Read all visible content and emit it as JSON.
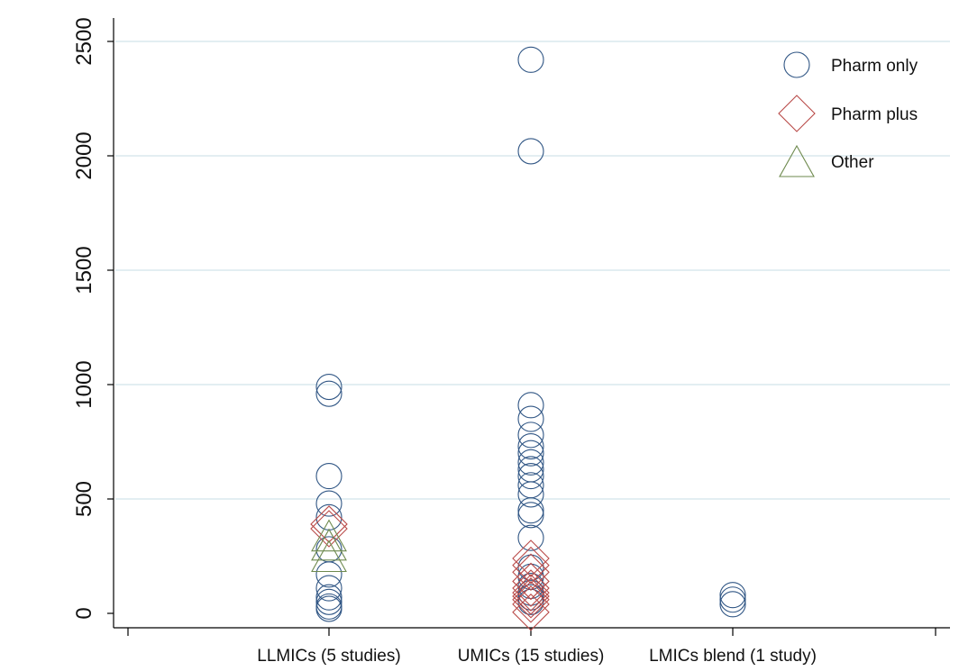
{
  "chart_data": {
    "type": "scatter",
    "title": "",
    "xlabel": "",
    "ylabel": "",
    "categories": [
      "LLMICs (5 studies)",
      "UMICs (15 studies)",
      "LMICs blend (1 study)"
    ],
    "y_ticks": [
      "0",
      "500",
      "1000",
      "1500",
      "2000",
      "2500"
    ],
    "y_tick_values": [
      0,
      500,
      1000,
      1500,
      2000,
      2500
    ],
    "ylim": [
      -30,
      2600
    ],
    "grid": true,
    "legend_position": "top-right",
    "series": [
      {
        "name": "Pharm only",
        "marker": "circle",
        "color": "#2f5584",
        "points": [
          {
            "category": 0,
            "value": 990
          },
          {
            "category": 0,
            "value": 960
          },
          {
            "category": 0,
            "value": 600
          },
          {
            "category": 0,
            "value": 480
          },
          {
            "category": 0,
            "value": 420
          },
          {
            "category": 0,
            "value": 280
          },
          {
            "category": 0,
            "value": 170
          },
          {
            "category": 0,
            "value": 110
          },
          {
            "category": 0,
            "value": 70
          },
          {
            "category": 0,
            "value": 50
          },
          {
            "category": 0,
            "value": 30
          },
          {
            "category": 0,
            "value": 20
          },
          {
            "category": 1,
            "value": 2420
          },
          {
            "category": 1,
            "value": 2020
          },
          {
            "category": 1,
            "value": 910
          },
          {
            "category": 1,
            "value": 850
          },
          {
            "category": 1,
            "value": 780
          },
          {
            "category": 1,
            "value": 730
          },
          {
            "category": 1,
            "value": 700
          },
          {
            "category": 1,
            "value": 660
          },
          {
            "category": 1,
            "value": 630
          },
          {
            "category": 1,
            "value": 600
          },
          {
            "category": 1,
            "value": 560
          },
          {
            "category": 1,
            "value": 520
          },
          {
            "category": 1,
            "value": 450
          },
          {
            "category": 1,
            "value": 430
          },
          {
            "category": 1,
            "value": 330
          },
          {
            "category": 1,
            "value": 200
          },
          {
            "category": 1,
            "value": 160
          },
          {
            "category": 1,
            "value": 120
          },
          {
            "category": 1,
            "value": 90
          },
          {
            "category": 1,
            "value": 70
          },
          {
            "category": 1,
            "value": 50
          },
          {
            "category": 2,
            "value": 80
          },
          {
            "category": 2,
            "value": 60
          },
          {
            "category": 2,
            "value": 40
          }
        ]
      },
      {
        "name": "Pharm plus",
        "marker": "diamond",
        "color": "#b94a48",
        "points": [
          {
            "category": 0,
            "value": 390
          },
          {
            "category": 0,
            "value": 370
          },
          {
            "category": 1,
            "value": 240
          },
          {
            "category": 1,
            "value": 210
          },
          {
            "category": 1,
            "value": 180
          },
          {
            "category": 1,
            "value": 140
          },
          {
            "category": 1,
            "value": 110
          },
          {
            "category": 1,
            "value": 90
          },
          {
            "category": 1,
            "value": 75
          },
          {
            "category": 1,
            "value": 60
          },
          {
            "category": 1,
            "value": 40
          },
          {
            "category": 1,
            "value": 5
          }
        ]
      },
      {
        "name": "Other",
        "marker": "triangle",
        "color": "#6e8a4e",
        "points": [
          {
            "category": 0,
            "value": 340
          },
          {
            "category": 0,
            "value": 300
          },
          {
            "category": 0,
            "value": 250
          }
        ]
      }
    ]
  }
}
